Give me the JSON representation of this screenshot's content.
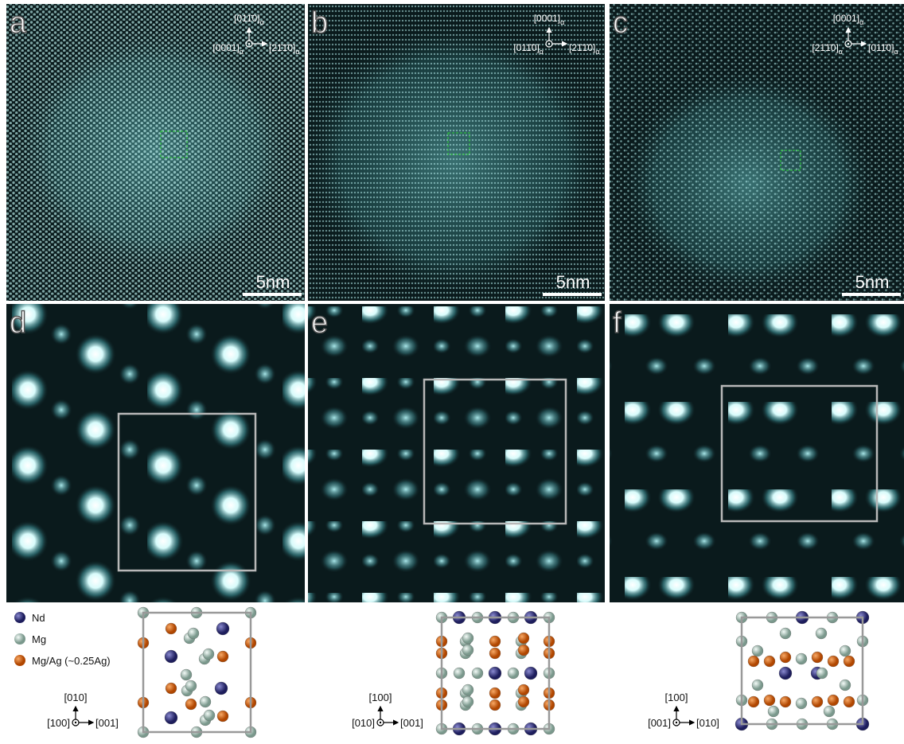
{
  "panels": [
    {
      "letter": "a",
      "scale_bar": "5nm",
      "orientation": {
        "up": {
          "index": "[011̄0]",
          "subscript": "α"
        },
        "left": {
          "index": "[0001]",
          "subscript": "α"
        },
        "right": {
          "index": "[21̄1̄0]",
          "subscript": "α"
        }
      }
    },
    {
      "letter": "b",
      "scale_bar": "5nm",
      "orientation": {
        "up": {
          "index": "[0001]",
          "subscript": "α"
        },
        "left": {
          "index": "[011̄0]",
          "subscript": "α"
        },
        "right": {
          "index": "[21̄1̄0]",
          "subscript": "α"
        }
      }
    },
    {
      "letter": "c",
      "scale_bar": "5nm",
      "orientation": {
        "up": {
          "index": "[0001]",
          "subscript": "α"
        },
        "left": {
          "index": "[21̄1̄0]",
          "subscript": "α"
        },
        "right": {
          "index": "[011̄0]",
          "subscript": "α"
        }
      }
    },
    {
      "letter": "d"
    },
    {
      "letter": "e"
    },
    {
      "letter": "f"
    }
  ],
  "legend": [
    {
      "label": "Nd"
    },
    {
      "label": "Mg"
    },
    {
      "label": "Mg/Ag (~0.25Ag)"
    }
  ],
  "models": [
    {
      "up": "[010]",
      "left": "[100]",
      "right": "[001]"
    },
    {
      "up": "[100]",
      "left": "[010]",
      "right": "[001]"
    },
    {
      "up": "[100]",
      "left": "[001]",
      "right": "[010]"
    }
  ]
}
